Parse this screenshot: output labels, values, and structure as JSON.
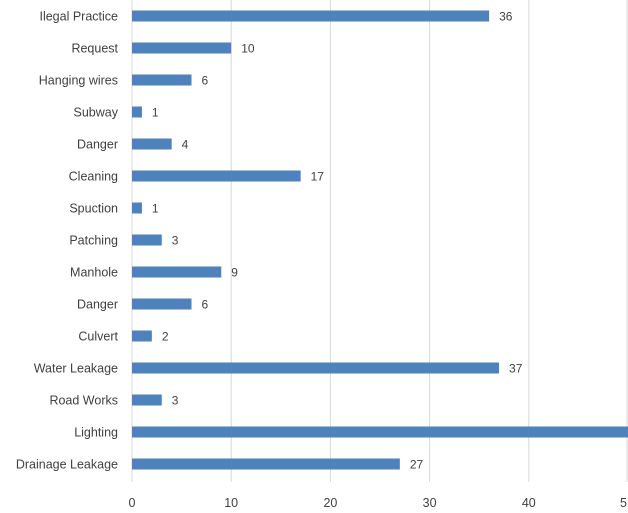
{
  "chart_data": {
    "type": "bar",
    "orientation": "horizontal",
    "categories": [
      "Ilegal Practice",
      "Request",
      "Hanging wires",
      "Subway",
      "Danger",
      "Cleaning",
      "Spuction",
      "Patching",
      "Manhole",
      "Danger",
      "Culvert",
      "Water Leakage",
      "Road Works",
      "Lighting",
      "Drainage Leakage"
    ],
    "values": [
      36,
      10,
      6,
      1,
      4,
      17,
      1,
      3,
      9,
      6,
      2,
      37,
      3,
      50,
      27
    ],
    "data_labels": [
      "36",
      "10",
      "6",
      "1",
      "4",
      "17",
      "1",
      "3",
      "9",
      "6",
      "2",
      "37",
      "3",
      "",
      "27"
    ],
    "x_ticks": [
      "0",
      "10",
      "20",
      "30",
      "40",
      "5"
    ],
    "xlim": [
      0,
      50
    ],
    "grid": true,
    "bar_color": "#4f81bd",
    "title": "",
    "xlabel": "",
    "ylabel": ""
  }
}
